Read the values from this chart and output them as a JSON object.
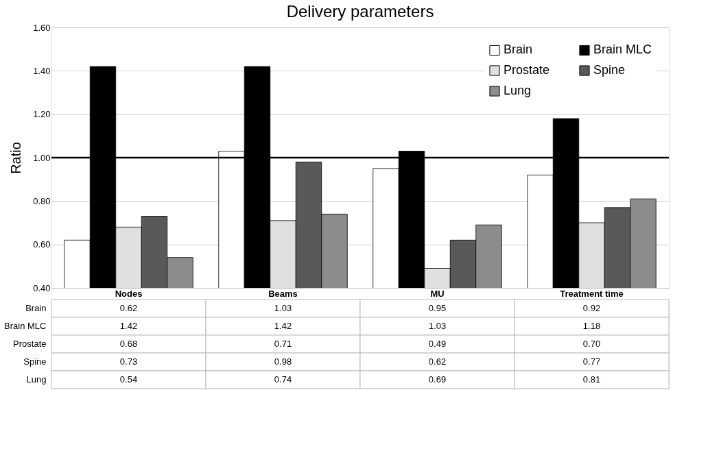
{
  "chart_data": {
    "type": "bar",
    "title": "Delivery parameters",
    "ylabel": "Ratio",
    "categories": [
      "Nodes",
      "Beams",
      "MU",
      "Treatment time"
    ],
    "series": [
      {
        "name": "Brain",
        "color": "#ffffff",
        "values": [
          0.62,
          1.03,
          0.95,
          0.92
        ],
        "value_labels": [
          "0.62",
          "1.03",
          "0.95",
          "0.92"
        ]
      },
      {
        "name": "Brain MLC",
        "color": "#000000",
        "values": [
          1.42,
          1.42,
          1.03,
          1.18
        ],
        "value_labels": [
          "1.42",
          "1.42",
          "1.03",
          "1.18"
        ]
      },
      {
        "name": "Prostate",
        "color": "#e0e0e0",
        "values": [
          0.68,
          0.71,
          0.49,
          0.7
        ],
        "value_labels": [
          "0.68",
          "0.71",
          "0.49",
          "0.70"
        ]
      },
      {
        "name": "Spine",
        "color": "#595959",
        "values": [
          0.73,
          0.98,
          0.62,
          0.77
        ],
        "value_labels": [
          "0.73",
          "0.98",
          "0.62",
          "0.77"
        ]
      },
      {
        "name": "Lung",
        "color": "#8c8c8c",
        "values": [
          0.54,
          0.74,
          0.69,
          0.81
        ],
        "value_labels": [
          "0.54",
          "0.74",
          "0.69",
          "0.81"
        ]
      }
    ],
    "ylim": [
      0.4,
      1.6
    ],
    "yticks": [
      {
        "value": 0.4,
        "label": "0.40"
      },
      {
        "value": 0.6,
        "label": "0.60"
      },
      {
        "value": 0.8,
        "label": "0.80"
      },
      {
        "value": 1.0,
        "label": "1.00"
      },
      {
        "value": 1.2,
        "label": "1.20"
      },
      {
        "value": 1.4,
        "label": "1.40"
      },
      {
        "value": 1.6,
        "label": "1.60"
      }
    ],
    "ref_lines": [
      {
        "axis": "y",
        "value": 1.0,
        "color": "#000000"
      }
    ],
    "grid": "y",
    "legend": "top right"
  }
}
